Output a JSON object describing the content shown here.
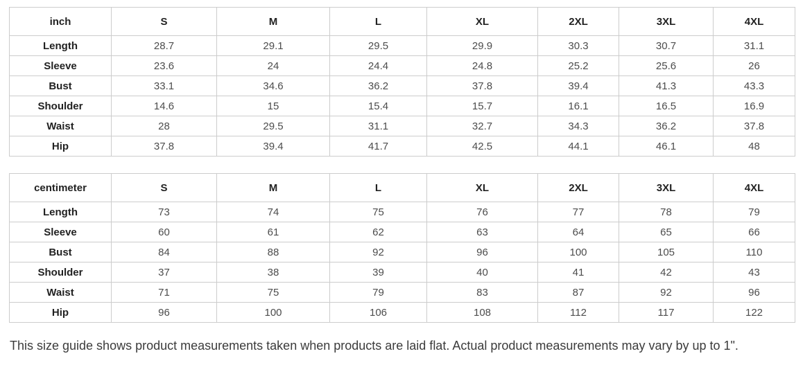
{
  "tables": [
    {
      "unit": "inch",
      "sizes": [
        "S",
        "M",
        "L",
        "XL",
        "2XL",
        "3XL",
        "4XL"
      ],
      "rows": [
        {
          "label": "Length",
          "values": [
            "28.7",
            "29.1",
            "29.5",
            "29.9",
            "30.3",
            "30.7",
            "31.1"
          ]
        },
        {
          "label": "Sleeve",
          "values": [
            "23.6",
            "24",
            "24.4",
            "24.8",
            "25.2",
            "25.6",
            "26"
          ]
        },
        {
          "label": "Bust",
          "values": [
            "33.1",
            "34.6",
            "36.2",
            "37.8",
            "39.4",
            "41.3",
            "43.3"
          ]
        },
        {
          "label": "Shoulder",
          "values": [
            "14.6",
            "15",
            "15.4",
            "15.7",
            "16.1",
            "16.5",
            "16.9"
          ]
        },
        {
          "label": "Waist",
          "values": [
            "28",
            "29.5",
            "31.1",
            "32.7",
            "34.3",
            "36.2",
            "37.8"
          ]
        },
        {
          "label": "Hip",
          "values": [
            "37.8",
            "39.4",
            "41.7",
            "42.5",
            "44.1",
            "46.1",
            "48"
          ]
        }
      ]
    },
    {
      "unit": "centimeter",
      "sizes": [
        "S",
        "M",
        "L",
        "XL",
        "2XL",
        "3XL",
        "4XL"
      ],
      "rows": [
        {
          "label": "Length",
          "values": [
            "73",
            "74",
            "75",
            "76",
            "77",
            "78",
            "79"
          ]
        },
        {
          "label": "Sleeve",
          "values": [
            "60",
            "61",
            "62",
            "63",
            "64",
            "65",
            "66"
          ]
        },
        {
          "label": "Bust",
          "values": [
            "84",
            "88",
            "92",
            "96",
            "100",
            "105",
            "110"
          ]
        },
        {
          "label": "Shoulder",
          "values": [
            "37",
            "38",
            "39",
            "40",
            "41",
            "42",
            "43"
          ]
        },
        {
          "label": "Waist",
          "values": [
            "71",
            "75",
            "79",
            "83",
            "87",
            "92",
            "96"
          ]
        },
        {
          "label": "Hip",
          "values": [
            "96",
            "100",
            "106",
            "108",
            "112",
            "117",
            "122"
          ]
        }
      ]
    }
  ],
  "footer": {
    "note": "This size guide shows product measurements taken when products are laid flat. Actual product measurements may vary by up to 1\"."
  },
  "colors": {
    "border": "#cccccc",
    "header_text": "#222222",
    "cell_text": "#4c4c4c",
    "note_text": "#3b3b3b"
  }
}
